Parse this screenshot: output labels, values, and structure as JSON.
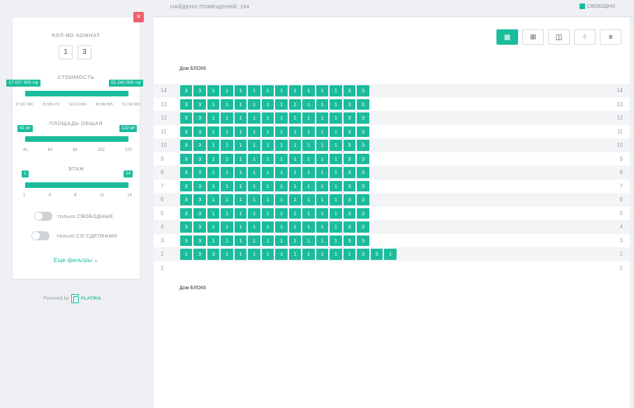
{
  "header": {
    "found_label": "НАЙДЕНО ПОМЕЩЕНИЙ: 184",
    "legend_label": "СВОБОДНО"
  },
  "filters": {
    "close": "×",
    "rooms": {
      "title": "КОЛ-ВО КОМНАТ",
      "options": [
        "1",
        "3"
      ]
    },
    "price": {
      "title": "СТОИМОСТЬ",
      "min_label": "17 027 300 тңг",
      "max_label": "51 240 000 тңг",
      "ticks": [
        "17 027 300",
        "25 580 475",
        "34 133 650",
        "42 686 825",
        "51 240 000"
      ]
    },
    "area": {
      "title": "ПЛОЩАДЬ ОБЩАЯ",
      "min_label": "41 м²",
      "max_label": "122 м²",
      "ticks": [
        "41",
        "61",
        "82",
        "102",
        "122"
      ]
    },
    "floor": {
      "title": "ЭТАЖ",
      "min_label": "1",
      "max_label": "14",
      "ticks": [
        "1",
        "4",
        "8",
        "11",
        "14"
      ]
    },
    "toggles": {
      "free_only": "только СВОБОДНЫЕ",
      "with_deals": "только СО СДЕЛКАМИ"
    },
    "more": "Еще фильтры ⌄"
  },
  "powered": {
    "label": "Powered by",
    "brand": "PLATRIS"
  },
  "chess": {
    "house_title": "Дом БЛОК6",
    "house_title_bottom": "Дом БЛОК6",
    "view_icons": [
      "▦",
      "⊞",
      "◫",
      "⁘",
      "≡"
    ],
    "floors": [
      {
        "floor": "14",
        "cells": [
          "3",
          "3",
          "1",
          "1",
          "1",
          "1",
          "1",
          "1",
          "1",
          "1",
          "1",
          "1",
          "3",
          "3"
        ]
      },
      {
        "floor": "13",
        "cells": [
          "3",
          "3",
          "1",
          "1",
          "1",
          "1",
          "1",
          "1",
          "1",
          "1",
          "1",
          "1",
          "3",
          "3"
        ]
      },
      {
        "floor": "12",
        "cells": [
          "3",
          "3",
          "1",
          "1",
          "1",
          "1",
          "1",
          "1",
          "1",
          "1",
          "1",
          "1",
          "3",
          "3"
        ]
      },
      {
        "floor": "11",
        "cells": [
          "3",
          "3",
          "1",
          "1",
          "1",
          "1",
          "1",
          "1",
          "1",
          "1",
          "1",
          "1",
          "3",
          "3"
        ]
      },
      {
        "floor": "10",
        "cells": [
          "3",
          "3",
          "1",
          "1",
          "1",
          "1",
          "1",
          "1",
          "1",
          "1",
          "1",
          "1",
          "3",
          "3"
        ]
      },
      {
        "floor": "9",
        "cells": [
          "3",
          "3",
          "1",
          "1",
          "1",
          "1",
          "1",
          "1",
          "1",
          "1",
          "1",
          "1",
          "3",
          "3"
        ]
      },
      {
        "floor": "8",
        "cells": [
          "3",
          "3",
          "1",
          "1",
          "1",
          "1",
          "1",
          "1",
          "1",
          "1",
          "1",
          "1",
          "3",
          "3"
        ]
      },
      {
        "floor": "7",
        "cells": [
          "3",
          "3",
          "1",
          "1",
          "1",
          "1",
          "1",
          "1",
          "1",
          "1",
          "1",
          "1",
          "3",
          "3"
        ]
      },
      {
        "floor": "6",
        "cells": [
          "3",
          "3",
          "1",
          "1",
          "1",
          "1",
          "1",
          "1",
          "1",
          "1",
          "1",
          "1",
          "3",
          "3"
        ]
      },
      {
        "floor": "5",
        "cells": [
          "3",
          "3",
          "1",
          "1",
          "1",
          "1",
          "1",
          "1",
          "1",
          "1",
          "1",
          "1",
          "3",
          "3"
        ]
      },
      {
        "floor": "4",
        "cells": [
          "3",
          "3",
          "1",
          "1",
          "1",
          "1",
          "1",
          "1",
          "1",
          "1",
          "1",
          "1",
          "3",
          "3"
        ]
      },
      {
        "floor": "3",
        "cells": [
          "3",
          "3",
          "1",
          "1",
          "1",
          "1",
          "1",
          "1",
          "1",
          "1",
          "1",
          "1",
          "3",
          "3"
        ]
      },
      {
        "floor": "2",
        "cells": [
          "1",
          "3",
          "3",
          "1",
          "1",
          "1",
          "1",
          "1",
          "1",
          "1",
          "1",
          "1",
          "1",
          "3",
          "3",
          "1"
        ]
      },
      {
        "floor": "1",
        "cells": []
      }
    ]
  }
}
